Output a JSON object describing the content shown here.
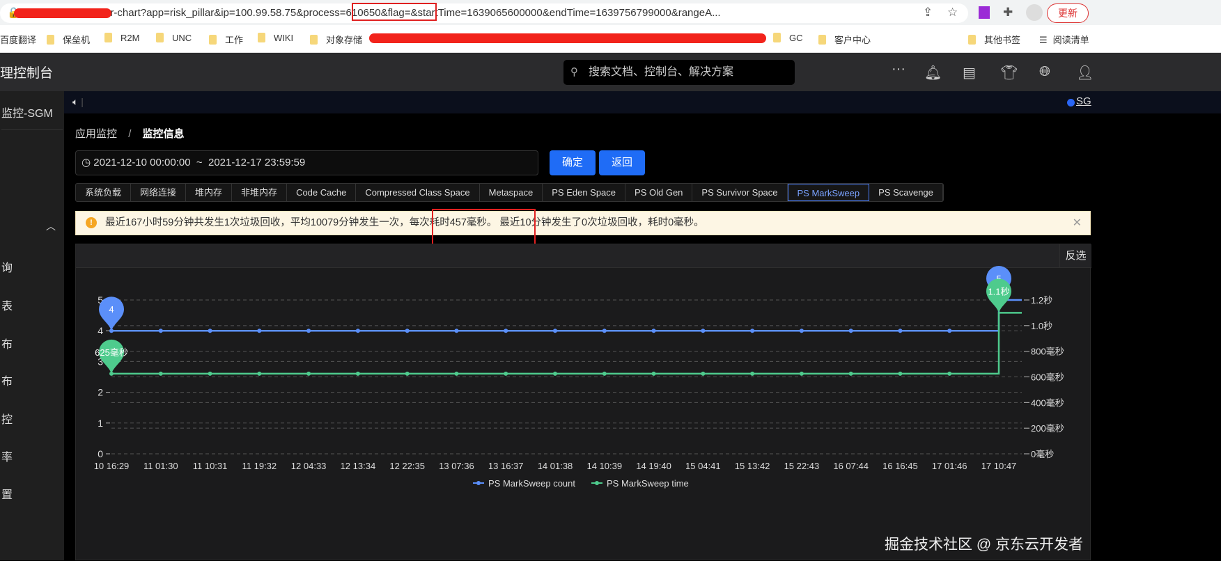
{
  "browser": {
    "url": "/opp-monitor/ins/opr-chart?app=risk_pillar&ip=100.99.58.75&process=610650&flag=&startTime=1639065600000&endTime=1639756799000&rangeA...",
    "update_label": "更新",
    "bookmarks": [
      "百度翻译",
      "保垒机",
      "R2M",
      "UNC",
      "工作",
      "WIKI",
      "对象存储",
      "GC",
      "客户中心"
    ],
    "other_bookmarks": "其他书签",
    "reading_list": "阅读清单"
  },
  "header": {
    "title": "理控制台",
    "search_placeholder": "搜索文档、控制台、解决方案"
  },
  "sidebar": {
    "top_item": "监控-SGM",
    "items": [
      "询",
      "表",
      "布",
      "布",
      "控",
      "率",
      "置"
    ]
  },
  "notice": {
    "sgm_link": "SG"
  },
  "breadcrumb": {
    "parent": "应用监控",
    "separator": "/",
    "current": "监控信息"
  },
  "date_range": "2021-12-10 00:00:00  ~  2021-12-17 23:59:59",
  "buttons": {
    "confirm": "确定",
    "back": "返回"
  },
  "tabs": [
    "系统负载",
    "网络连接",
    "堆内存",
    "非堆内存",
    "Code Cache",
    "Compressed Class Space",
    "Metaspace",
    "PS Eden Space",
    "PS Old Gen",
    "PS Survivor Space",
    "PS MarkSweep",
    "PS Scavenge"
  ],
  "active_tab": "PS MarkSweep",
  "alert": {
    "text": "最近167小时59分钟共发生1次垃圾回收，平均10079分钟发生一次，每次耗时457毫秒。 最近10分钟发生了0次垃圾回收，耗时0毫秒。"
  },
  "panel": {
    "invert_label": "反选"
  },
  "watermark": "掘金技术社区 @ 京东云开发者",
  "chart_data": {
    "type": "line",
    "categories": [
      "10 16:29",
      "11 01:30",
      "11 10:31",
      "11 19:32",
      "12 04:33",
      "12 13:34",
      "12 22:35",
      "13 07:36",
      "13 16:37",
      "14 01:38",
      "14 10:39",
      "14 19:40",
      "15 04:41",
      "15 13:42",
      "15 22:43",
      "16 07:44",
      "16 16:45",
      "17 01:46",
      "17 10:47"
    ],
    "series": [
      {
        "name": "PS MarkSweep count",
        "axis": "left",
        "color": "#5b8ff9",
        "values": [
          4,
          4,
          4,
          4,
          4,
          4,
          4,
          4,
          4,
          4,
          4,
          4,
          4,
          4,
          4,
          4,
          4,
          4,
          5
        ]
      },
      {
        "name": "PS MarkSweep time",
        "axis": "right",
        "unit": "ms",
        "color": "#4ecb8d",
        "values": [
          625,
          625,
          625,
          625,
          625,
          625,
          625,
          625,
          625,
          625,
          625,
          625,
          625,
          625,
          625,
          625,
          625,
          625,
          1100
        ]
      }
    ],
    "left_axis": {
      "range": [
        0,
        5
      ],
      "ticks": [
        "0",
        "1",
        "2",
        "3",
        "4",
        "5"
      ]
    },
    "right_axis": {
      "range": [
        0,
        1200
      ],
      "ticks": [
        "0毫秒",
        "200毫秒",
        "400毫秒",
        "600毫秒",
        "800毫秒",
        "1.0秒",
        "1.2秒"
      ]
    },
    "markers": [
      {
        "series": 0,
        "index": 0,
        "label": "4"
      },
      {
        "series": 1,
        "index": 0,
        "label": "625毫秒"
      },
      {
        "series": 0,
        "index": 18,
        "label": "5"
      },
      {
        "series": 1,
        "index": 18,
        "label": "1.1秒"
      }
    ],
    "legend": "bottom",
    "grid": "dashed"
  }
}
